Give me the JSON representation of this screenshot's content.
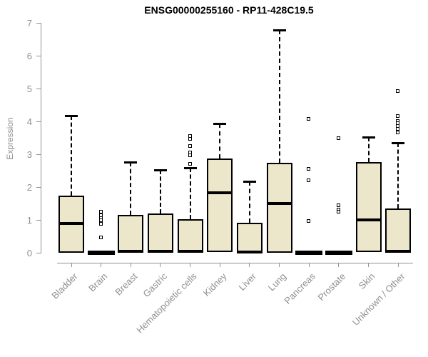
{
  "title": "ENSG00000255160 - RP11-428C19.5",
  "colors": {
    "box_fill": "#ece7cb",
    "box_border": "#000000",
    "axis": "#919191",
    "tick_text": "#8f8f8f",
    "title_text": "#000000"
  },
  "chart_data": {
    "type": "box",
    "title": "ENSG00000255160 - RP11-428C19.5",
    "xlabel": "",
    "ylabel": "Expression",
    "ylim": [
      0,
      7
    ],
    "yticks": [
      0,
      1,
      2,
      3,
      4,
      5,
      6,
      7
    ],
    "grid": false,
    "legend": false,
    "categories": [
      "Bladder",
      "Brain",
      "Breast",
      "Gastric",
      "Hematopoietic cells",
      "Kidney",
      "Liver",
      "Lung",
      "Pancreas",
      "Prostate",
      "Skin",
      "Unknown / Other"
    ],
    "series": [
      {
        "category": "Bladder",
        "low": 0,
        "q1": 0,
        "median": 0.89,
        "q3": 1.74,
        "high": 4.17,
        "outliers": []
      },
      {
        "category": "Brain",
        "low": 0,
        "q1": 0,
        "median": 0,
        "q3": 0,
        "high": 0,
        "outliers": [
          1.25,
          1.12,
          1.05,
          0.97,
          0.88,
          0.46
        ]
      },
      {
        "category": "Breast",
        "low": 0,
        "q1": 0,
        "median": 0.04,
        "q3": 1.15,
        "high": 2.76,
        "outliers": []
      },
      {
        "category": "Gastric",
        "low": 0,
        "q1": 0,
        "median": 0.04,
        "q3": 1.2,
        "high": 2.52,
        "outliers": []
      },
      {
        "category": "Hematopoietic cells",
        "low": 0,
        "q1": 0,
        "median": 0.04,
        "q3": 1.02,
        "high": 2.59,
        "outliers": [
          2.7,
          2.95,
          3.05,
          3.25,
          3.45,
          3.55
        ]
      },
      {
        "category": "Kidney",
        "low": 0.02,
        "q1": 0.02,
        "median": 1.83,
        "q3": 2.87,
        "high": 3.93,
        "outliers": []
      },
      {
        "category": "Liver",
        "low": 0,
        "q1": 0,
        "median": 0.03,
        "q3": 0.91,
        "high": 2.17,
        "outliers": []
      },
      {
        "category": "Lung",
        "low": 0,
        "q1": 0,
        "median": 1.5,
        "q3": 2.74,
        "high": 6.78,
        "outliers": []
      },
      {
        "category": "Pancreas",
        "low": 0,
        "q1": 0,
        "median": 0,
        "q3": 0,
        "high": 0,
        "outliers": [
          4.07,
          2.54,
          2.2,
          0.96
        ]
      },
      {
        "category": "Prostate",
        "low": 0,
        "q1": 0,
        "median": 0,
        "q3": 0,
        "high": 0,
        "outliers": [
          3.48,
          1.43,
          1.3,
          1.24
        ]
      },
      {
        "category": "Skin",
        "low": 0.02,
        "q1": 0.02,
        "median": 1.0,
        "q3": 2.76,
        "high": 3.52,
        "outliers": []
      },
      {
        "category": "Unknown / Other",
        "low": 0,
        "q1": 0,
        "median": 0.04,
        "q3": 1.35,
        "high": 3.35,
        "outliers": [
          4.91,
          4.15,
          4.0,
          3.93,
          3.85,
          3.76,
          3.65
        ]
      }
    ]
  }
}
